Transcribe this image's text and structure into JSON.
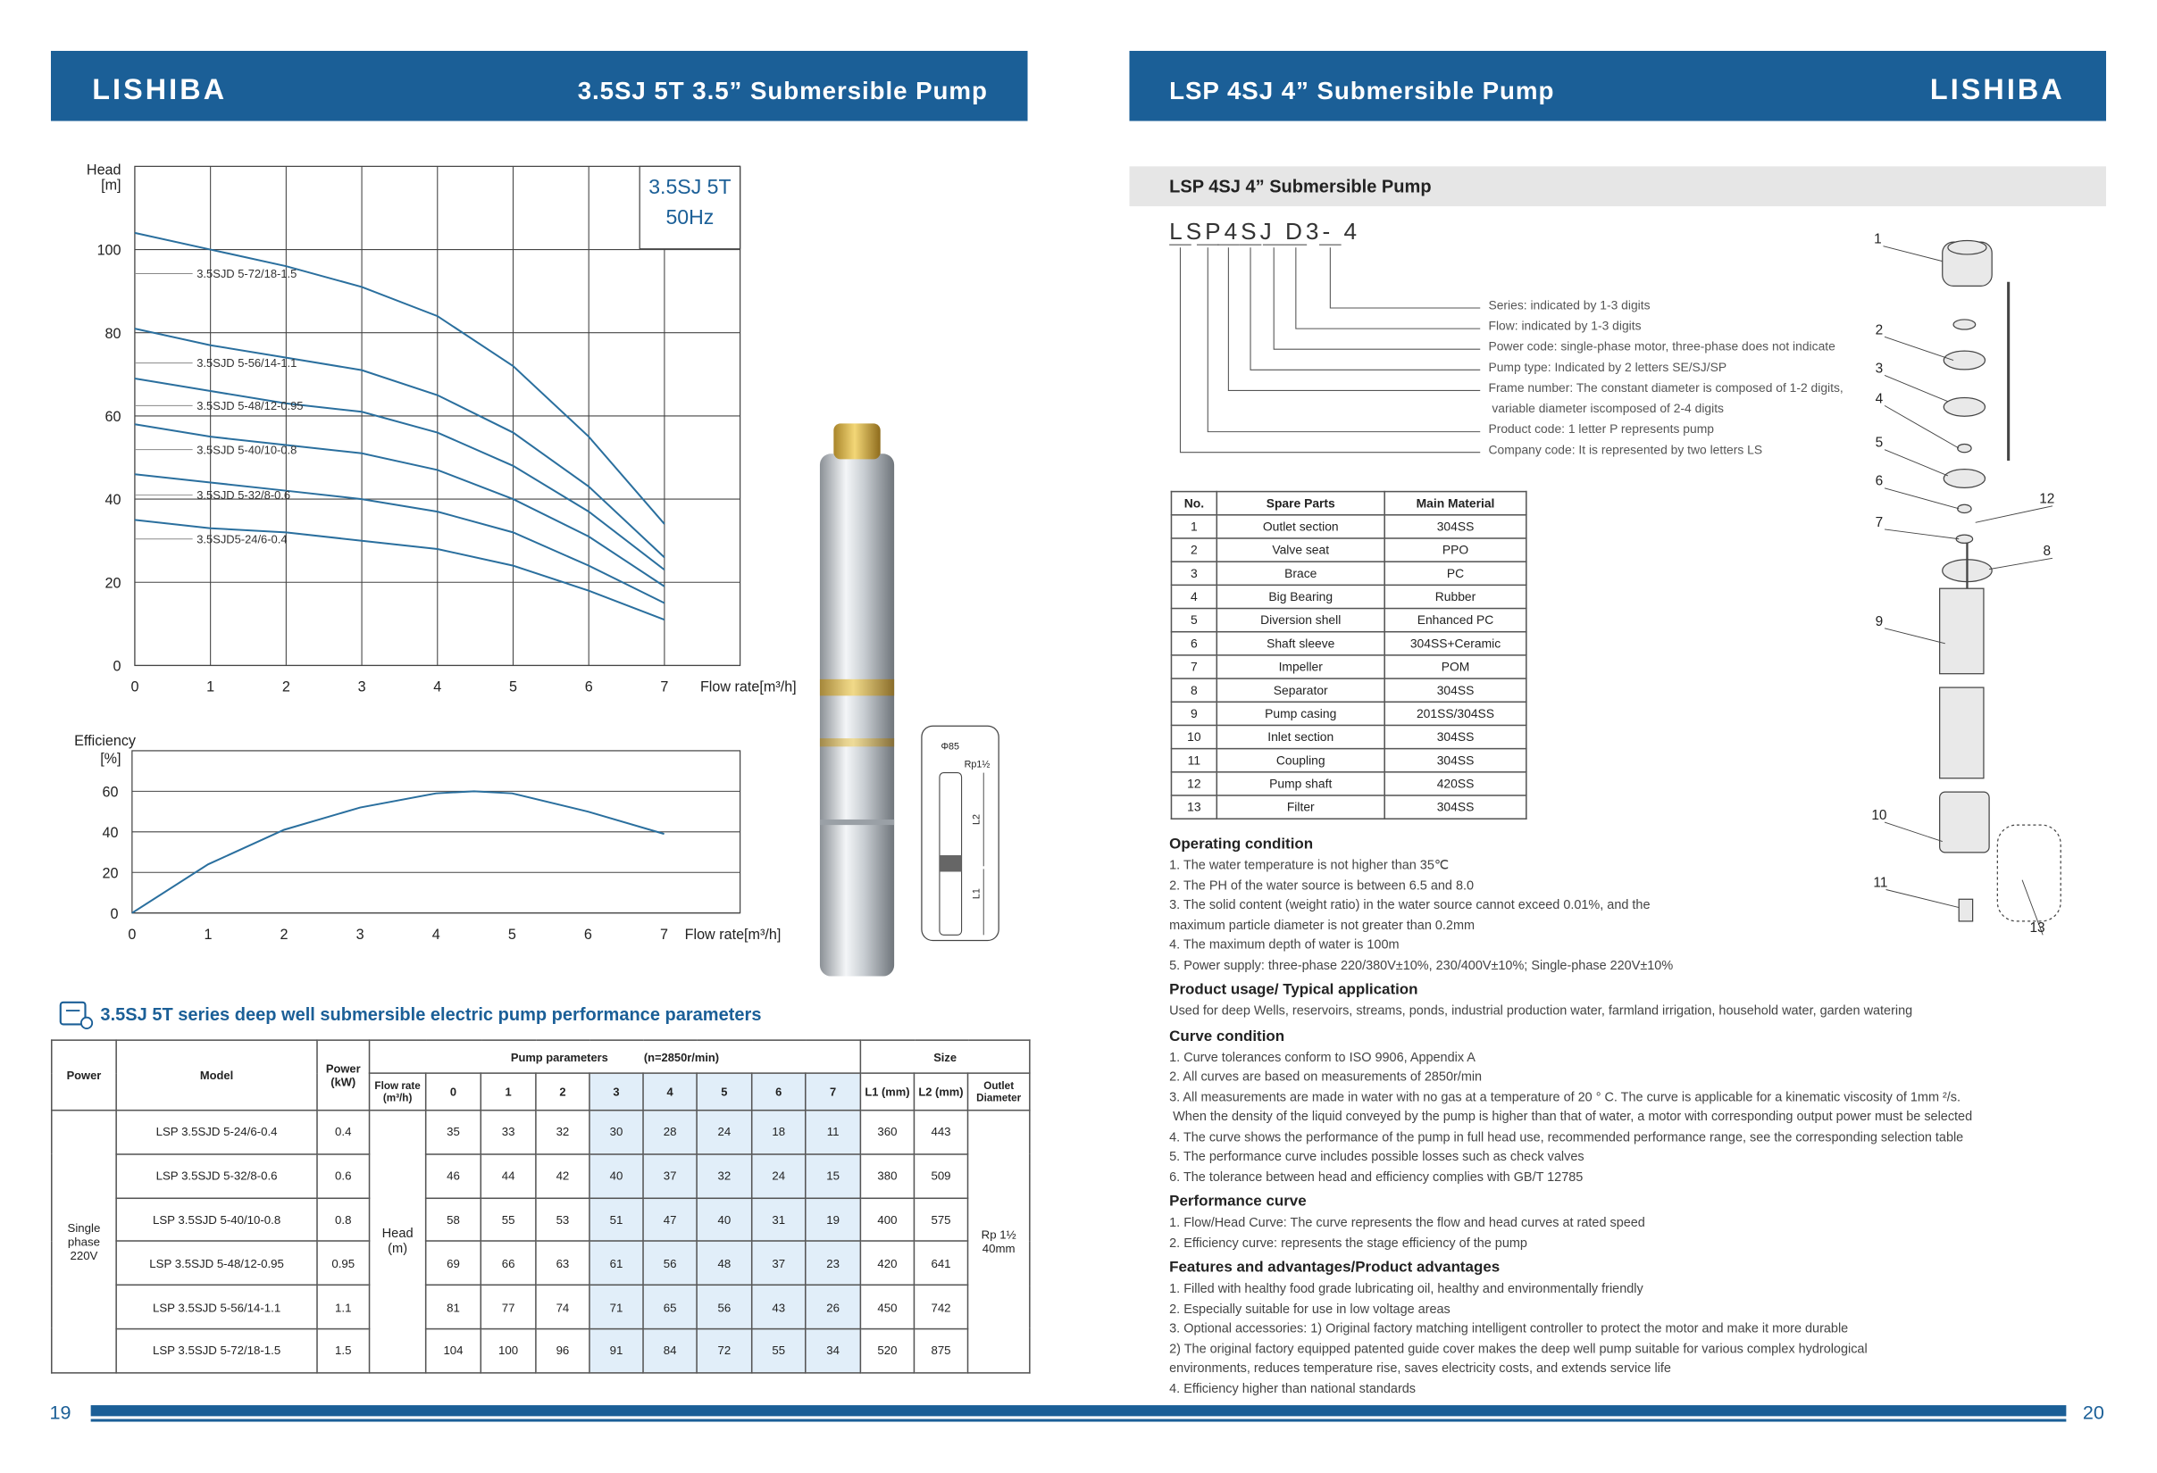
{
  "left_page": {
    "logo": "LISHIBA",
    "title": "3.5SJ 5T 3.5” Submersible Pump",
    "page_number": "19"
  },
  "right_page": {
    "logo": "LISHIBA",
    "title": "LSP 4SJ 4” Submersible Pump",
    "page_number": "20",
    "section_title": "LSP 4SJ 4” Submersible Pump"
  },
  "chart_data": [
    {
      "type": "line",
      "title": "3.5SJ 5T",
      "subtitle": "50Hz",
      "y_label": "Head",
      "y_unit": "[m]",
      "x_label": "Flow rate[m³/h]",
      "x": [
        0,
        1,
        2,
        3,
        4,
        5,
        6,
        7
      ],
      "xlim": [
        0,
        8
      ],
      "xticks": [
        0,
        1,
        2,
        3,
        4,
        5,
        6,
        7
      ],
      "ylim": [
        0,
        120
      ],
      "yticks": [
        0,
        20,
        40,
        60,
        80,
        100
      ],
      "grid": true,
      "color": "#2a6f9e",
      "series": [
        {
          "name": "3.5SJD5-24/6-0.4",
          "values": [
            35,
            33,
            32,
            30,
            28,
            24,
            18,
            11
          ]
        },
        {
          "name": "3.5SJD 5-32/8-0.6",
          "values": [
            46,
            44,
            42,
            40,
            37,
            32,
            24,
            15
          ]
        },
        {
          "name": "3.5SJD 5-40/10-0.8",
          "values": [
            58,
            55,
            53,
            51,
            47,
            40,
            31,
            19
          ]
        },
        {
          "name": "3.5SJD 5-48/12-0.95",
          "values": [
            69,
            66,
            63,
            61,
            56,
            48,
            37,
            23
          ]
        },
        {
          "name": "3.5SJD 5-56/14-1.1",
          "values": [
            81,
            77,
            74,
            71,
            65,
            56,
            43,
            26
          ]
        },
        {
          "name": "3.5SJD 5-72/18-1.5",
          "values": [
            104,
            100,
            96,
            91,
            84,
            72,
            55,
            34
          ]
        }
      ]
    },
    {
      "type": "line",
      "y_label": "Efficiency",
      "y_unit": "[%]",
      "x_label": "Flow rate[m³/h]",
      "x": [
        0,
        1,
        2,
        3,
        4,
        4.5,
        5,
        6,
        7
      ],
      "values": [
        0,
        24,
        41,
        52,
        59,
        60,
        59,
        50,
        39
      ],
      "xlim": [
        0,
        8
      ],
      "xticks": [
        0,
        1,
        2,
        3,
        4,
        5,
        6,
        7
      ],
      "ylim": [
        0,
        80
      ],
      "yticks": [
        0,
        20,
        40,
        60
      ],
      "grid": "y",
      "color": "#2a6f9e"
    }
  ],
  "pump_drawing": {
    "diameter": "Φ85",
    "thread": "Rp1½",
    "l2": "L2",
    "l1": "L1"
  },
  "table": {
    "title": "3.5SJ 5T series deep well submersible electric pump performance parameters",
    "headers": {
      "power": "Power",
      "model": "Model",
      "power_kw": "Power (kW)",
      "pump_parameters": "Pump parameters",
      "speed": "(n=2850r/min)",
      "size": "Size",
      "flow_rate": "Flow rate (m³/h)",
      "l1": "L1 (mm)",
      "l2": "L2 (mm)",
      "outlet": "Outlet Diameter"
    },
    "power_group": "Single phase 220V",
    "head_group": "Head (m)",
    "outlet_group": "Rp 1½ 40mm",
    "rows": [
      {
        "model": "LSP 3.5SJD 5-24/6-0.4",
        "power": 0.4,
        "l1": 360,
        "l2": 443
      },
      {
        "model": "LSP 3.5SJD 5-32/8-0.6",
        "power": 0.6,
        "l1": 380,
        "l2": 509
      },
      {
        "model": "LSP 3.5SJD 5-40/10-0.8",
        "power": 0.8,
        "l1": 400,
        "l2": 575
      },
      {
        "model": "LSP 3.5SJD 5-48/12-0.95",
        "power": 0.95,
        "l1": 420,
        "l2": 641
      },
      {
        "model": "LSP 3.5SJD 5-56/14-1.1",
        "power": 1.1,
        "l1": 450,
        "l2": 742
      },
      {
        "model": "LSP 3.5SJD 5-72/18-1.5",
        "power": 1.5,
        "l1": 520,
        "l2": 875
      }
    ]
  },
  "model_code": {
    "code": "LSP4SJ D3- 4",
    "descriptions": [
      "Series: indicated by 1-3 digits",
      "Flow: indicated by 1-3 digits",
      "Power code: single-phase motor, three-phase does not indicate",
      "Pump type: Indicated by 2 letters SE/SJ/SP",
      "Frame number: The constant diameter is composed of 1-2 digits,",
      " variable diameter iscomposed of 2-4 digits",
      "Product code: 1 letter P represents pump",
      "Company code: It is represented by two letters LS"
    ]
  },
  "parts_table": {
    "headers": [
      "No.",
      "Spare Parts",
      "Main Material"
    ],
    "rows": [
      [
        1,
        "Outlet section",
        "304SS"
      ],
      [
        2,
        "Valve seat",
        "PPO"
      ],
      [
        3,
        "Brace",
        "PC"
      ],
      [
        4,
        "Big Bearing",
        "Rubber"
      ],
      [
        5,
        "Diversion shell",
        "Enhanced PC"
      ],
      [
        6,
        "Shaft sleeve",
        "304SS+Ceramic"
      ],
      [
        7,
        "Impeller",
        "POM"
      ],
      [
        8,
        "Separator",
        "304SS"
      ],
      [
        9,
        "Pump casing",
        "201SS/304SS"
      ],
      [
        10,
        "Inlet section",
        "304SS"
      ],
      [
        11,
        "Coupling",
        "304SS"
      ],
      [
        12,
        "Pump shaft",
        "420SS"
      ],
      [
        13,
        "Filter",
        "304SS"
      ]
    ]
  },
  "exploded_view": {
    "labels": [
      "1",
      "2",
      "3",
      "4",
      "5",
      "6",
      "7",
      "8",
      "9",
      "10",
      "11",
      "12",
      "13"
    ]
  },
  "sections": [
    {
      "heading": "Operating condition",
      "lines": [
        "1. The water temperature is not higher than 35℃",
        "2. The PH of the water source is between 6.5 and 8.0",
        "3. The solid content (weight ratio) in the water source cannot exceed 0.01%, and the",
        "maximum particle diameter is not greater than 0.2mm",
        "4. The maximum depth of water is 100m",
        "5. Power supply: three-phase 220/380V±10%, 230/400V±10%; Single-phase 220V±10%"
      ]
    },
    {
      "heading": "Product usage/ Typical application",
      "lines": [
        "Used for deep Wells, reservoirs, streams, ponds, industrial production water, farmland irrigation, household water, garden watering"
      ]
    },
    {
      "heading": "Curve condition",
      "lines": [
        "1. Curve tolerances conform to ISO 9906, Appendix A",
        "2. All curves are based on measurements of 2850r/min",
        "3. All measurements are made in water with no gas at a temperature of 20 ° C. The curve is applicable for a kinematic viscosity of 1mm ²/s.",
        " When the density of the liquid conveyed by the pump is higher than that of water, a motor with corresponding output power must be selected",
        "4. The curve shows the performance of the pump in full head use, recommended performance range, see the corresponding selection table",
        "5. The performance curve includes possible losses such as check valves",
        "6. The tolerance between head and efficiency complies with GB/T 12785"
      ]
    },
    {
      "heading": "Performance curve",
      "lines": [
        "1. Flow/Head Curve: The curve represents the flow and head curves at rated speed",
        "2. Efficiency curve: represents the stage efficiency of the pump"
      ]
    },
    {
      "heading": "Features and advantages/Product advantages",
      "lines": [
        "1. Filled with healthy food grade lubricating oil, healthy and environmentally friendly",
        "2. Especially suitable for use in low voltage areas",
        "3. Optional accessories: 1) Original factory matching intelligent controller to protect the motor and make it more durable",
        "2) The original factory equipped patented guide cover makes the deep well pump suitable for various complex hydrological",
        "environments, reduces temperature rise, saves electricity costs, and extends service life",
        "4. Efficiency higher than national standards"
      ]
    }
  ]
}
